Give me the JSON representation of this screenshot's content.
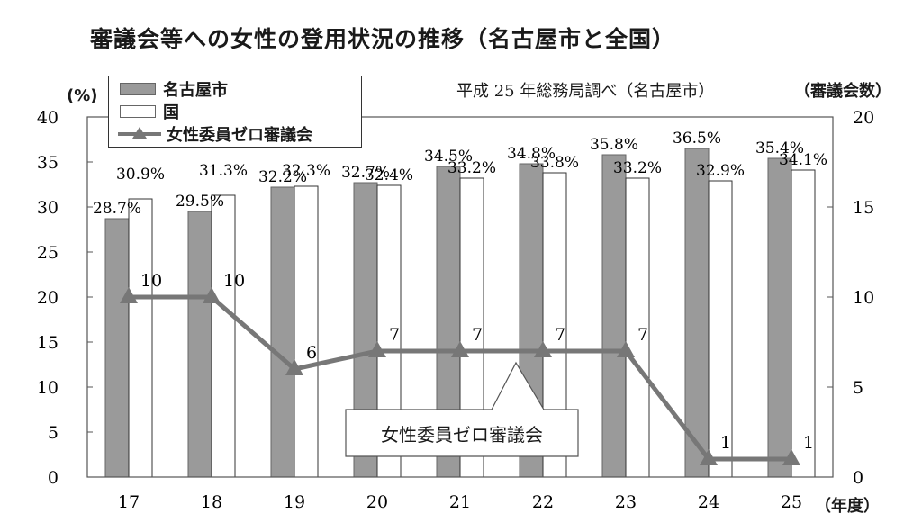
{
  "title": "審議会等への女性の登用状況の推移（名古屋市と全国）",
  "source_note": "平成 25 年総務局調べ（名古屋市）",
  "left_axis_unit": "(%)",
  "right_axis_unit": "（審議会数）",
  "x_axis_unit": "（年度）",
  "callout_label": "女性委員ゼロ審議会",
  "colors": {
    "nagoya": "#9a9a9a",
    "national": "#ffffff",
    "line": "#777777"
  },
  "chart_data": {
    "type": "bar",
    "categories": [
      "17",
      "18",
      "19",
      "20",
      "21",
      "22",
      "23",
      "24",
      "25"
    ],
    "series": [
      {
        "name": "名古屋市",
        "type": "bar",
        "axis": "left",
        "values": [
          28.7,
          29.5,
          32.2,
          32.7,
          34.5,
          34.8,
          35.8,
          36.5,
          35.4
        ],
        "labels": [
          "28.7%",
          "29.5%",
          "32.2%",
          "32.7%",
          "34.5%",
          "34.8%",
          "35.8%",
          "36.5%",
          "35.4%"
        ]
      },
      {
        "name": "国",
        "type": "bar",
        "axis": "left",
        "values": [
          30.9,
          31.3,
          32.3,
          32.4,
          33.2,
          33.8,
          33.2,
          32.9,
          34.1
        ],
        "labels": [
          "30.9%",
          "31.3%",
          "32.3%",
          "32.4%",
          "33.2%",
          "33.8%",
          "33.2%",
          "32.9%",
          "34.1%"
        ]
      },
      {
        "name": "女性委員ゼロ審議会",
        "type": "line",
        "axis": "right",
        "values": [
          10,
          10,
          6,
          7,
          7,
          7,
          7,
          1,
          1
        ],
        "labels": [
          "10",
          "10",
          "6",
          "7",
          "7",
          "7",
          "7",
          "1",
          "1"
        ]
      }
    ],
    "left_axis": {
      "min": 0,
      "max": 40,
      "ticks": [
        "0",
        "5",
        "10",
        "15",
        "20",
        "25",
        "30",
        "35",
        "40"
      ]
    },
    "right_axis": {
      "min": 0,
      "max": 20,
      "ticks": [
        "0",
        "5",
        "10",
        "15",
        "20"
      ]
    },
    "legend": "top-left",
    "grid": false
  }
}
